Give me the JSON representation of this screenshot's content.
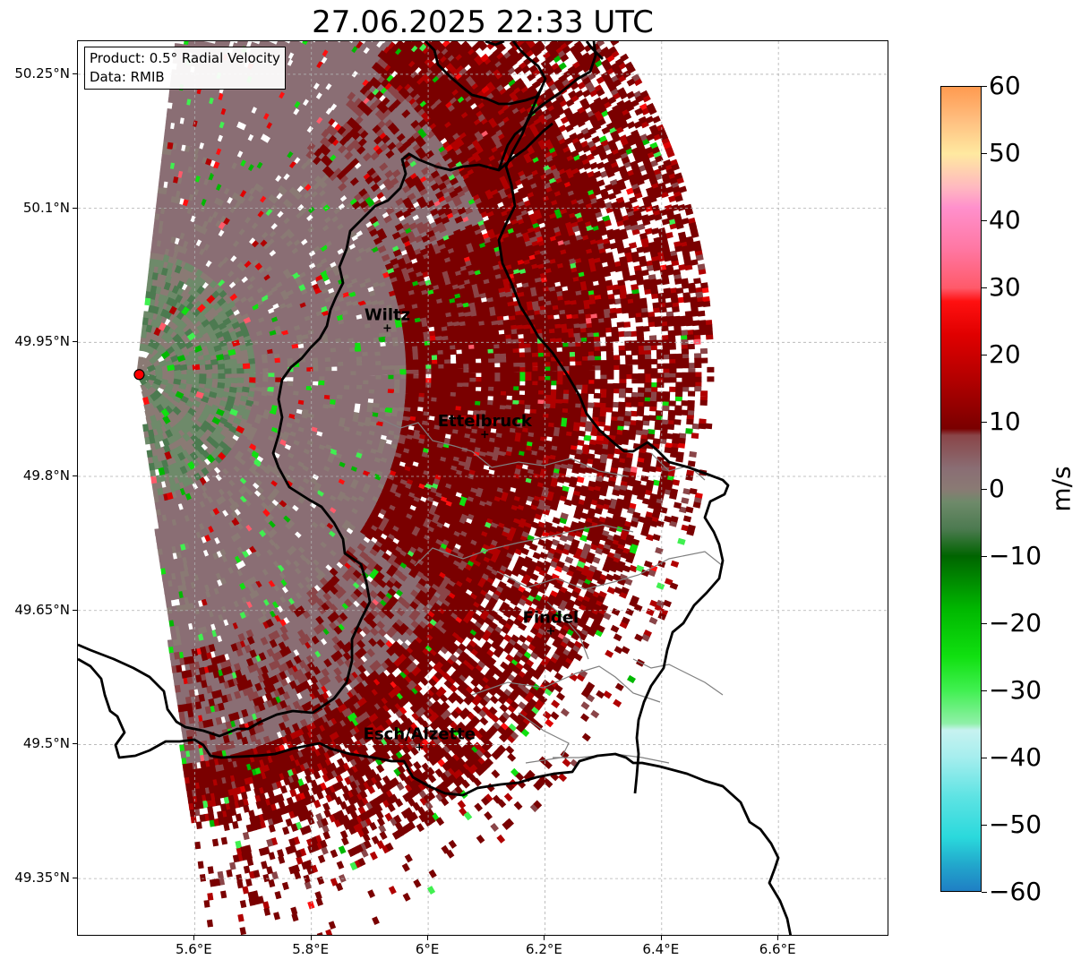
{
  "title": "27.06.2025 22:33 UTC",
  "info": {
    "product": "Product: 0.5° Radial Velocity",
    "data": "Data: RMIB"
  },
  "map_extent": {
    "lon_min": 5.4,
    "lon_max": 6.79,
    "lat_min": 49.285,
    "lat_max": 50.287
  },
  "lat_ticks": [
    {
      "value": 50.25,
      "label": "50.25°N"
    },
    {
      "value": 50.1,
      "label": "50.1°N"
    },
    {
      "value": 49.95,
      "label": "49.95°N"
    },
    {
      "value": 49.8,
      "label": "49.8°N"
    },
    {
      "value": 49.65,
      "label": "49.65°N"
    },
    {
      "value": 49.5,
      "label": "49.5°N"
    },
    {
      "value": 49.35,
      "label": "49.35°N"
    }
  ],
  "lon_ticks": [
    {
      "value": 5.6,
      "label": "5.6°E"
    },
    {
      "value": 5.8,
      "label": "5.8°E"
    },
    {
      "value": 6.0,
      "label": "6°E"
    },
    {
      "value": 6.2,
      "label": "6.2°E"
    },
    {
      "value": 6.4,
      "label": "6.4°E"
    },
    {
      "value": 6.6,
      "label": "6.6°E"
    }
  ],
  "radar_site": {
    "lon": 5.505,
    "lat": 49.914
  },
  "cities": [
    {
      "name": "Wiltz",
      "lon": 5.93,
      "lat": 49.966
    },
    {
      "name": "Ettelbruck",
      "lon": 6.097,
      "lat": 49.847
    },
    {
      "name": "Findel",
      "lon": 6.21,
      "lat": 49.627
    },
    {
      "name": "Esch/Alzette",
      "lon": 5.985,
      "lat": 49.497
    }
  ],
  "colorbar": {
    "label": "m/s",
    "min": -60,
    "max": 60,
    "ticks": [
      "60",
      "50",
      "40",
      "30",
      "20",
      "10",
      "0",
      "−10",
      "−20",
      "−30",
      "−40",
      "−50",
      "−60"
    ],
    "tick_values": [
      60,
      50,
      40,
      30,
      20,
      10,
      0,
      -10,
      -20,
      -30,
      -40,
      -50,
      -60
    ],
    "stops": [
      {
        "v": -60,
        "color": "#1f7fc4"
      },
      {
        "v": -56,
        "color": "#22a8cc"
      },
      {
        "v": -52,
        "color": "#2ad9dc"
      },
      {
        "v": -46,
        "color": "#5de3e3"
      },
      {
        "v": -40,
        "color": "#a6eeee"
      },
      {
        "v": -36,
        "color": "#c7f2f0"
      },
      {
        "v": -35,
        "color": "#90f0a8"
      },
      {
        "v": -30,
        "color": "#40f050"
      },
      {
        "v": -25,
        "color": "#10e010"
      },
      {
        "v": -18,
        "color": "#00b800"
      },
      {
        "v": -10,
        "color": "#006400"
      },
      {
        "v": -6,
        "color": "#4c7a50"
      },
      {
        "v": -2,
        "color": "#6e8a6a"
      },
      {
        "v": 0,
        "color": "#8a7a74"
      },
      {
        "v": 3,
        "color": "#8a6e74"
      },
      {
        "v": 8,
        "color": "#8a4548"
      },
      {
        "v": 9,
        "color": "#7a0000"
      },
      {
        "v": 16,
        "color": "#b00000"
      },
      {
        "v": 23,
        "color": "#e00000"
      },
      {
        "v": 28,
        "color": "#ff1010"
      },
      {
        "v": 30,
        "color": "#ff5a6a"
      },
      {
        "v": 36,
        "color": "#ff78a4"
      },
      {
        "v": 42,
        "color": "#ff90cc"
      },
      {
        "v": 45,
        "color": "#ffb8c0"
      },
      {
        "v": 50,
        "color": "#ffe9a0"
      },
      {
        "v": 55,
        "color": "#ffbf80"
      },
      {
        "v": 60,
        "color": "#ff9a50"
      }
    ]
  },
  "colors": {
    "border_national": "#000000",
    "border_canton": "#808080",
    "grid": "#b0b0b0",
    "site_marker": "#ff0000"
  }
}
